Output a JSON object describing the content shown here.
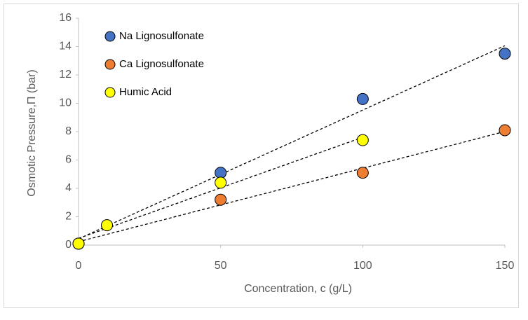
{
  "chart_data": {
    "type": "scatter",
    "x_label": "Concentration, c (g/L)",
    "y_label": "Osmotic Pressure,Π (bar)",
    "xlim": [
      0,
      150
    ],
    "xticks": [
      0,
      50,
      100,
      150
    ],
    "ylim": [
      0,
      16
    ],
    "yticks": [
      0,
      2,
      4,
      6,
      8,
      10,
      12,
      14,
      16
    ],
    "trendline": true,
    "legend": "top-left",
    "series": [
      {
        "name": "Na Lignosulfonate",
        "color": "#4472c4",
        "x": [
          0,
          50,
          100,
          150
        ],
        "values": [
          0.1,
          5.1,
          10.3,
          13.5
        ]
      },
      {
        "name": "Ca Lignosulfonate",
        "color": "#ed7d31",
        "x": [
          0,
          50,
          100,
          150
        ],
        "values": [
          0.1,
          3.2,
          5.1,
          8.1
        ]
      },
      {
        "name": "Humic Acid",
        "color": "#ffff00",
        "x": [
          0,
          10,
          50,
          100
        ],
        "values": [
          0.1,
          1.4,
          4.4,
          7.4
        ]
      }
    ]
  }
}
